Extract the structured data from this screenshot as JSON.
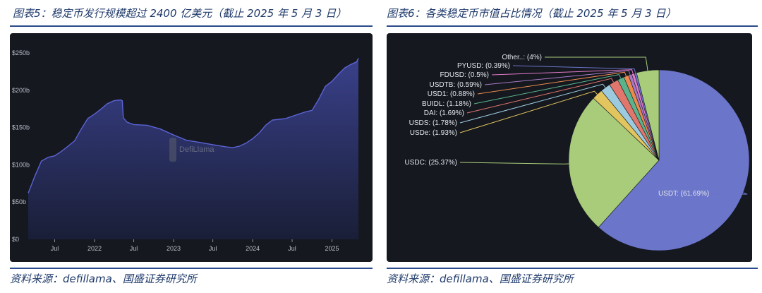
{
  "left": {
    "title": "图表5：稳定币发行规模超过 2400 亿美元（截止 2025 年 5 月 3 日）",
    "source": "资料来源：defillama、国盛证券研究所",
    "watermark": "DefiLlama"
  },
  "right": {
    "title": "图表6：各类稳定币市值占比情况（截止 2025 年 5 月 3 日）",
    "source": "资料来源：defillama、国盛证券研究所"
  },
  "chart_data": [
    {
      "type": "area",
      "title": "",
      "xlabel": "",
      "ylabel": "",
      "y_unit": "b",
      "ylim": [
        0,
        250
      ],
      "y_ticks": [
        0,
        50,
        100,
        150,
        200,
        250
      ],
      "y_tick_labels": [
        "$0",
        "$50b",
        "$100b",
        "$150b",
        "$200b",
        "$250b"
      ],
      "x_ticks": [
        {
          "date": "2021-07-01",
          "label": "Jul"
        },
        {
          "date": "2022-01-01",
          "label": "2022"
        },
        {
          "date": "2022-07-01",
          "label": "Jul"
        },
        {
          "date": "2023-01-01",
          "label": "2023"
        },
        {
          "date": "2023-07-01",
          "label": "Jul"
        },
        {
          "date": "2024-01-01",
          "label": "2024"
        },
        {
          "date": "2024-07-01",
          "label": "Jul"
        },
        {
          "date": "2025-01-01",
          "label": "2025"
        }
      ],
      "xlim": [
        "2021-03-01",
        "2025-05-03"
      ],
      "grid": false,
      "colors": {
        "line": "#5b63d6",
        "fill_top": "#3c4390",
        "fill_bottom": "#1a1f3a",
        "background": "#15181f"
      },
      "series": [
        {
          "name": "",
          "points": [
            [
              "2021-03-01",
              62
            ],
            [
              "2021-04-01",
              85
            ],
            [
              "2021-05-01",
              105
            ],
            [
              "2021-06-01",
              110
            ],
            [
              "2021-07-01",
              112
            ],
            [
              "2021-08-01",
              118
            ],
            [
              "2021-09-01",
              125
            ],
            [
              "2021-10-01",
              132
            ],
            [
              "2021-11-01",
              148
            ],
            [
              "2021-12-01",
              162
            ],
            [
              "2022-01-01",
              168
            ],
            [
              "2022-02-01",
              175
            ],
            [
              "2022-03-01",
              182
            ],
            [
              "2022-04-01",
              186
            ],
            [
              "2022-05-01",
              187
            ],
            [
              "2022-05-09",
              186
            ],
            [
              "2022-05-14",
              163
            ],
            [
              "2022-06-01",
              157
            ],
            [
              "2022-07-01",
              154
            ],
            [
              "2022-09-01",
              153
            ],
            [
              "2022-11-01",
              148
            ],
            [
              "2023-01-01",
              140
            ],
            [
              "2023-03-01",
              133
            ],
            [
              "2023-05-01",
              130
            ],
            [
              "2023-07-01",
              127
            ],
            [
              "2023-09-01",
              124
            ],
            [
              "2023-10-01",
              123
            ],
            [
              "2023-11-01",
              125
            ],
            [
              "2023-12-01",
              129
            ],
            [
              "2024-01-01",
              135
            ],
            [
              "2024-02-01",
              143
            ],
            [
              "2024-03-01",
              153
            ],
            [
              "2024-04-01",
              160
            ],
            [
              "2024-05-01",
              161
            ],
            [
              "2024-06-01",
              162
            ],
            [
              "2024-07-01",
              165
            ],
            [
              "2024-08-01",
              168
            ],
            [
              "2024-09-01",
              171
            ],
            [
              "2024-10-01",
              173
            ],
            [
              "2024-11-01",
              188
            ],
            [
              "2024-12-01",
              205
            ],
            [
              "2025-01-01",
              212
            ],
            [
              "2025-02-01",
              222
            ],
            [
              "2025-03-01",
              230
            ],
            [
              "2025-04-01",
              235
            ],
            [
              "2025-04-25",
              238
            ],
            [
              "2025-05-03",
              243
            ]
          ]
        }
      ]
    },
    {
      "type": "pie",
      "title": "",
      "background": "#15181f",
      "slices": [
        {
          "label": "USDT: (61.69%)",
          "value": 61.69,
          "color": "#6b75c9"
        },
        {
          "label": "USDC: (25.37%)",
          "value": 25.37,
          "color": "#a8cc7a"
        },
        {
          "label": "USDe: (1.93%)",
          "value": 1.93,
          "color": "#e3c55f"
        },
        {
          "label": "USDS: (1.78%)",
          "value": 1.78,
          "color": "#9ccbe0"
        },
        {
          "label": "DAI: (1.69%)",
          "value": 1.69,
          "color": "#e0766c"
        },
        {
          "label": "BUIDL: (1.18%)",
          "value": 1.18,
          "color": "#5bb38c"
        },
        {
          "label": "USD1: (0.88%)",
          "value": 0.88,
          "color": "#ec8a4d"
        },
        {
          "label": "USDTB: (0.59%)",
          "value": 0.59,
          "color": "#a779c4"
        },
        {
          "label": "FDUSD: (0.5%)",
          "value": 0.5,
          "color": "#e07ac8"
        },
        {
          "label": "PYUSD: (0.39%)",
          "value": 0.39,
          "color": "#6b75c9"
        },
        {
          "label": "Other..: (4%)",
          "value": 4,
          "color": "#a8cc7a"
        }
      ]
    }
  ]
}
